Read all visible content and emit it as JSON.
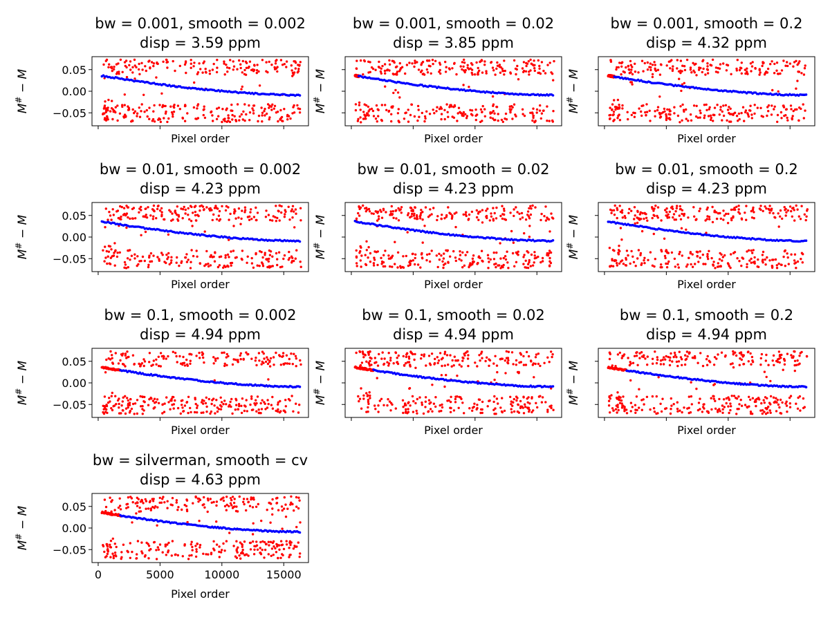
{
  "figure": {
    "background": "#ffffff",
    "outlier_color": "#ff0000",
    "fit_color": "#0000ff"
  },
  "chart_data": [
    {
      "type": "scatter",
      "title_line1": "bw = 0.001, smooth = 0.002",
      "title_line2": "disp = 3.59 ppm",
      "xlabel": "Pixel order",
      "ylabel": "M# − M",
      "ylabel_symbol": "M",
      "ylabel_sup": "#",
      "ylabel_rest": " − M",
      "xlim": [
        -500,
        17000
      ],
      "ylim": [
        -0.08,
        0.08
      ],
      "yticks": [
        0.05,
        0.0,
        -0.05
      ],
      "yticklabels": [
        "0.05",
        "0.00",
        "−0.05"
      ],
      "xticks": [
        0,
        5000,
        10000,
        15000
      ],
      "xticklabels": [
        "",
        "",
        "",
        ""
      ],
      "fit_start": 300,
      "fit_end": 16300,
      "fit_y_start": 0.036,
      "fit_y_end": -0.009,
      "fit_points": 130,
      "blue_from": 0
    },
    {
      "type": "scatter",
      "title_line1": "bw = 0.001, smooth = 0.02",
      "title_line2": "disp = 3.85 ppm",
      "xlabel": "Pixel order",
      "ylabel": "M# − M",
      "ylabel_symbol": "M",
      "ylabel_sup": "#",
      "ylabel_rest": " − M",
      "xlim": [
        -500,
        17000
      ],
      "ylim": [
        -0.08,
        0.08
      ],
      "yticks": [
        0.05,
        0.0,
        -0.05
      ],
      "yticklabels": [
        "",
        "",
        ""
      ],
      "xticks": [
        0,
        5000,
        10000,
        15000
      ],
      "xticklabels": [
        "",
        "",
        "",
        ""
      ],
      "fit_start": 300,
      "fit_end": 16300,
      "fit_y_start": 0.036,
      "fit_y_end": -0.009,
      "fit_points": 130,
      "blue_from": 600
    },
    {
      "type": "scatter",
      "title_line1": "bw = 0.001, smooth = 0.2",
      "title_line2": "disp = 4.32 ppm",
      "xlabel": "Pixel order",
      "ylabel": "M# − M",
      "ylabel_symbol": "M",
      "ylabel_sup": "#",
      "ylabel_rest": " − M",
      "xlim": [
        -500,
        17000
      ],
      "ylim": [
        -0.08,
        0.08
      ],
      "yticks": [
        0.05,
        0.0,
        -0.05
      ],
      "yticklabels": [
        "",
        "",
        ""
      ],
      "xticks": [
        0,
        5000,
        10000,
        15000
      ],
      "xticklabels": [
        "",
        "",
        "",
        ""
      ],
      "fit_start": 300,
      "fit_end": 16300,
      "fit_y_start": 0.036,
      "fit_y_end": -0.009,
      "fit_points": 130,
      "blue_from": 800
    },
    {
      "type": "scatter",
      "title_line1": "bw = 0.01, smooth = 0.002",
      "title_line2": "disp = 4.23 ppm",
      "xlabel": "Pixel order",
      "ylabel": "M# − M",
      "ylabel_symbol": "M",
      "ylabel_sup": "#",
      "ylabel_rest": " − M",
      "xlim": [
        -500,
        17000
      ],
      "ylim": [
        -0.08,
        0.08
      ],
      "yticks": [
        0.05,
        0.0,
        -0.05
      ],
      "yticklabels": [
        "0.05",
        "0.00",
        "−0.05"
      ],
      "xticks": [
        0,
        5000,
        10000,
        15000
      ],
      "xticklabels": [
        "",
        "",
        "",
        ""
      ],
      "fit_start": 300,
      "fit_end": 16300,
      "fit_y_start": 0.036,
      "fit_y_end": -0.009,
      "fit_points": 130,
      "blue_from": 0
    },
    {
      "type": "scatter",
      "title_line1": "bw = 0.01, smooth = 0.02",
      "title_line2": "disp = 4.23 ppm",
      "xlabel": "Pixel order",
      "ylabel": "M# − M",
      "ylabel_symbol": "M",
      "ylabel_sup": "#",
      "ylabel_rest": " − M",
      "xlim": [
        -500,
        17000
      ],
      "ylim": [
        -0.08,
        0.08
      ],
      "yticks": [
        0.05,
        0.0,
        -0.05
      ],
      "yticklabels": [
        "",
        "",
        ""
      ],
      "xticks": [
        0,
        5000,
        10000,
        15000
      ],
      "xticklabels": [
        "",
        "",
        "",
        ""
      ],
      "fit_start": 300,
      "fit_end": 16300,
      "fit_y_start": 0.036,
      "fit_y_end": -0.009,
      "fit_points": 130,
      "blue_from": 0
    },
    {
      "type": "scatter",
      "title_line1": "bw = 0.01, smooth = 0.2",
      "title_line2": "disp = 4.23 ppm",
      "xlabel": "Pixel order",
      "ylabel": "M# − M",
      "ylabel_symbol": "M",
      "ylabel_sup": "#",
      "ylabel_rest": " − M",
      "xlim": [
        -500,
        17000
      ],
      "ylim": [
        -0.08,
        0.08
      ],
      "yticks": [
        0.05,
        0.0,
        -0.05
      ],
      "yticklabels": [
        "",
        "",
        ""
      ],
      "xticks": [
        0,
        5000,
        10000,
        15000
      ],
      "xticklabels": [
        "",
        "",
        "",
        ""
      ],
      "fit_start": 300,
      "fit_end": 16300,
      "fit_y_start": 0.036,
      "fit_y_end": -0.009,
      "fit_points": 130,
      "blue_from": 0
    },
    {
      "type": "scatter",
      "title_line1": "bw = 0.1, smooth = 0.002",
      "title_line2": "disp = 4.94 ppm",
      "xlabel": "Pixel order",
      "ylabel": "M# − M",
      "ylabel_symbol": "M",
      "ylabel_sup": "#",
      "ylabel_rest": " − M",
      "xlim": [
        -500,
        17000
      ],
      "ylim": [
        -0.08,
        0.08
      ],
      "yticks": [
        0.05,
        0.0,
        -0.05
      ],
      "yticklabels": [
        "0.05",
        "0.00",
        "−0.05"
      ],
      "xticks": [
        0,
        5000,
        10000,
        15000
      ],
      "xticklabels": [
        "",
        "",
        "",
        ""
      ],
      "fit_start": 300,
      "fit_end": 16300,
      "fit_y_start": 0.036,
      "fit_y_end": -0.009,
      "fit_points": 130,
      "blue_from": 1800
    },
    {
      "type": "scatter",
      "title_line1": "bw = 0.1, smooth = 0.02",
      "title_line2": "disp = 4.94 ppm",
      "xlabel": "Pixel order",
      "ylabel": "M# − M",
      "ylabel_symbol": "M",
      "ylabel_sup": "#",
      "ylabel_rest": " − M",
      "xlim": [
        -500,
        17000
      ],
      "ylim": [
        -0.08,
        0.08
      ],
      "yticks": [
        0.05,
        0.0,
        -0.05
      ],
      "yticklabels": [
        "",
        "",
        ""
      ],
      "xticks": [
        0,
        5000,
        10000,
        15000
      ],
      "xticklabels": [
        "",
        "",
        "",
        ""
      ],
      "fit_start": 300,
      "fit_end": 16300,
      "fit_y_start": 0.036,
      "fit_y_end": -0.009,
      "fit_points": 130,
      "blue_from": 1800
    },
    {
      "type": "scatter",
      "title_line1": "bw = 0.1, smooth = 0.2",
      "title_line2": "disp = 4.94 ppm",
      "xlabel": "Pixel order",
      "ylabel": "M# − M",
      "ylabel_symbol": "M",
      "ylabel_sup": "#",
      "ylabel_rest": " − M",
      "xlim": [
        -500,
        17000
      ],
      "ylim": [
        -0.08,
        0.08
      ],
      "yticks": [
        0.05,
        0.0,
        -0.05
      ],
      "yticklabels": [
        "",
        "",
        ""
      ],
      "xticks": [
        0,
        5000,
        10000,
        15000
      ],
      "xticklabels": [
        "",
        "",
        "",
        ""
      ],
      "fit_start": 300,
      "fit_end": 16300,
      "fit_y_start": 0.036,
      "fit_y_end": -0.009,
      "fit_points": 130,
      "blue_from": 1800
    },
    {
      "type": "scatter",
      "title_line1": "bw = silverman, smooth = cv",
      "title_line2": "disp = 4.63 ppm",
      "xlabel": "Pixel order",
      "ylabel": "M# − M",
      "ylabel_symbol": "M",
      "ylabel_sup": "#",
      "ylabel_rest": " − M",
      "xlim": [
        -500,
        17000
      ],
      "ylim": [
        -0.08,
        0.08
      ],
      "yticks": [
        0.05,
        0.0,
        -0.05
      ],
      "yticklabels": [
        "0.05",
        "0.00",
        "−0.05"
      ],
      "xticks": [
        0,
        5000,
        10000,
        15000
      ],
      "xticklabels": [
        "0",
        "5000",
        "10000",
        "15000"
      ],
      "fit_start": 300,
      "fit_end": 16300,
      "fit_y_start": 0.036,
      "fit_y_end": -0.009,
      "fit_points": 130,
      "blue_from": 1800
    }
  ]
}
